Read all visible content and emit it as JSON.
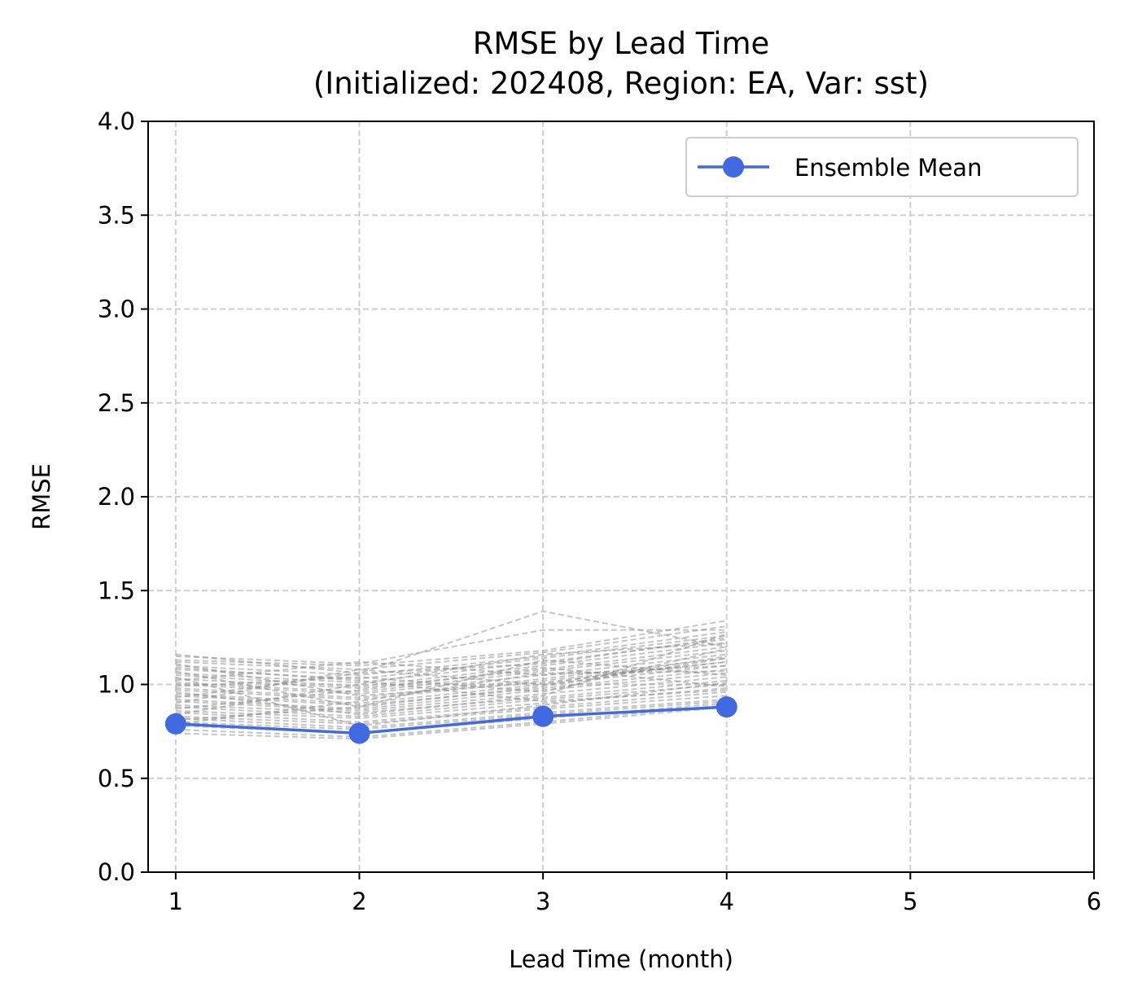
{
  "chart_data": {
    "type": "line",
    "title": "RMSE by Lead Time",
    "subtitle": "(Initialized: 202408, Region: EA, Var: sst)",
    "xlabel": "Lead Time (month)",
    "ylabel": "RMSE",
    "xlim": [
      0.85,
      6
    ],
    "ylim": [
      0,
      4
    ],
    "xticks": [
      1,
      2,
      3,
      4,
      5,
      6
    ],
    "yticks": [
      0.0,
      0.5,
      1.0,
      1.5,
      2.0,
      2.5,
      3.0,
      3.5,
      4.0
    ],
    "grid": true,
    "legend_position": "top-right",
    "x": [
      1,
      2,
      3,
      4
    ],
    "series": [
      {
        "name": "Ensemble Mean",
        "values": [
          0.79,
          0.74,
          0.83,
          0.88
        ],
        "color": "#4169e1",
        "marker": "circle"
      }
    ],
    "members": {
      "color": "#8c8c8c",
      "style": "dashed",
      "values": [
        [
          1.16,
          1.06,
          1.39,
          1.2
        ],
        [
          1.15,
          1.11,
          1.29,
          1.29
        ],
        [
          1.13,
          1.1,
          1.18,
          1.34
        ],
        [
          1.12,
          1.08,
          1.17,
          1.31
        ],
        [
          1.1,
          1.05,
          1.15,
          1.28
        ],
        [
          1.08,
          1.03,
          1.14,
          1.26
        ],
        [
          1.06,
          1.01,
          1.12,
          1.24
        ],
        [
          1.05,
          0.99,
          1.1,
          1.22
        ],
        [
          1.03,
          0.98,
          1.08,
          1.2
        ],
        [
          1.01,
          0.96,
          1.07,
          1.18
        ],
        [
          1.0,
          0.95,
          1.05,
          1.16
        ],
        [
          0.98,
          0.93,
          1.03,
          1.14
        ],
        [
          0.97,
          0.92,
          1.02,
          1.12
        ],
        [
          0.95,
          0.9,
          1.0,
          1.1
        ],
        [
          0.94,
          0.89,
          0.98,
          1.08
        ],
        [
          0.92,
          0.87,
          0.97,
          1.06
        ],
        [
          0.91,
          0.86,
          0.95,
          1.04
        ],
        [
          0.89,
          0.85,
          0.93,
          1.02
        ],
        [
          0.88,
          0.83,
          0.92,
          1.0
        ],
        [
          0.86,
          0.82,
          0.9,
          0.98
        ],
        [
          0.85,
          0.8,
          0.88,
          0.96
        ],
        [
          0.83,
          0.79,
          0.87,
          0.94
        ],
        [
          0.82,
          0.77,
          0.85,
          0.92
        ],
        [
          0.8,
          0.76,
          0.84,
          0.91
        ],
        [
          0.78,
          0.74,
          0.82,
          0.9
        ],
        [
          0.76,
          0.72,
          0.8,
          0.89
        ],
        [
          0.74,
          0.71,
          0.79,
          0.88
        ],
        [
          1.02,
          1.12,
          1.05,
          1.1
        ],
        [
          0.9,
          1.08,
          1.0,
          1.15
        ],
        [
          1.07,
          0.88,
          1.13,
          1.05
        ],
        [
          0.84,
          1.0,
          1.16,
          1.22
        ],
        [
          0.96,
          0.84,
          0.94,
          1.27
        ],
        [
          1.11,
          0.94,
          1.01,
          1.12
        ],
        [
          0.87,
          0.97,
          1.09,
          0.99
        ],
        [
          0.99,
          1.04,
          0.96,
          1.19
        ],
        [
          0.79,
          0.91,
          1.06,
          1.07
        ],
        [
          1.04,
          0.78,
          0.89,
          1.01
        ],
        [
          0.93,
          1.06,
          1.11,
          1.25
        ],
        [
          0.81,
          0.88,
          0.99,
          1.14
        ],
        [
          1.09,
          1.02,
          0.91,
          0.97
        ]
      ]
    }
  }
}
